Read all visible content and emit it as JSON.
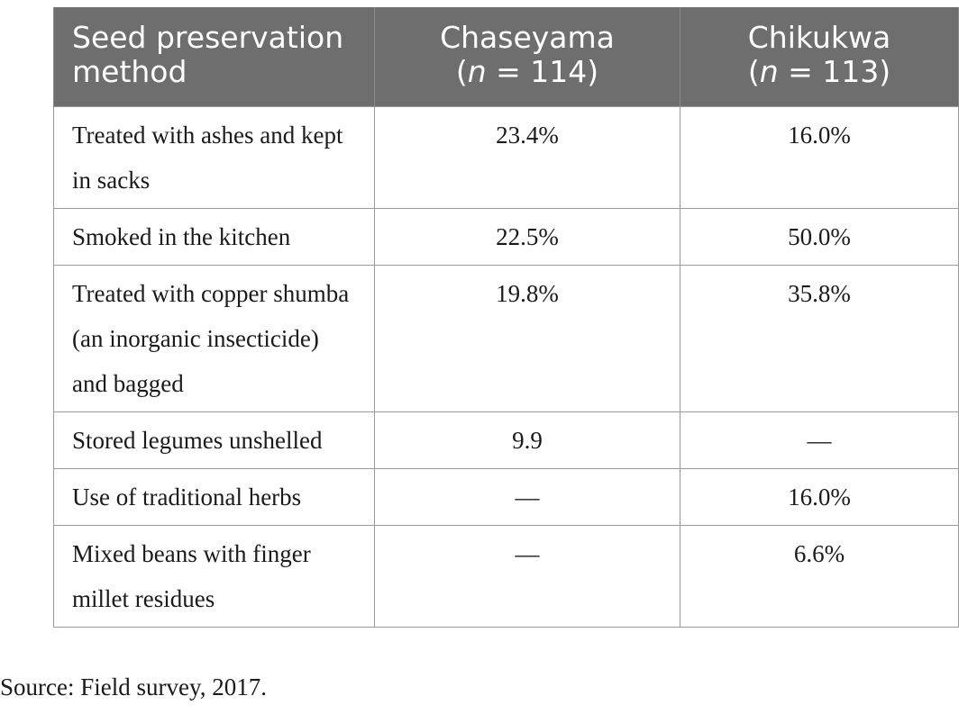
{
  "table": {
    "headers": {
      "method": "Seed preservation method",
      "site1_name": "Chaseyama",
      "site1_n_var": "n",
      "site1_n_rest": " = 114)",
      "site2_name": "Chikukwa",
      "site2_n_var": "n",
      "site2_n_rest": " = 113)"
    },
    "rows": [
      {
        "method": "Treated with ashes and kept in sacks",
        "chaseyama": "23.4%",
        "chikukwa": "16.0%"
      },
      {
        "method": "Smoked in the kitchen",
        "chaseyama": "22.5%",
        "chikukwa": "50.0%"
      },
      {
        "method": "Treated with copper shumba (an inorganic insecticide) and bagged",
        "chaseyama": "19.8%",
        "chikukwa": "35.8%"
      },
      {
        "method": "Stored legumes unshelled",
        "chaseyama": "9.9",
        "chikukwa": "—"
      },
      {
        "method": "Use of traditional herbs",
        "chaseyama": "—",
        "chikukwa": "16.0%"
      },
      {
        "method": "Mixed beans with finger millet residues",
        "chaseyama": "—",
        "chikukwa": "6.6%"
      }
    ]
  },
  "footer": {
    "source": "Source: Field survey, 2017."
  }
}
